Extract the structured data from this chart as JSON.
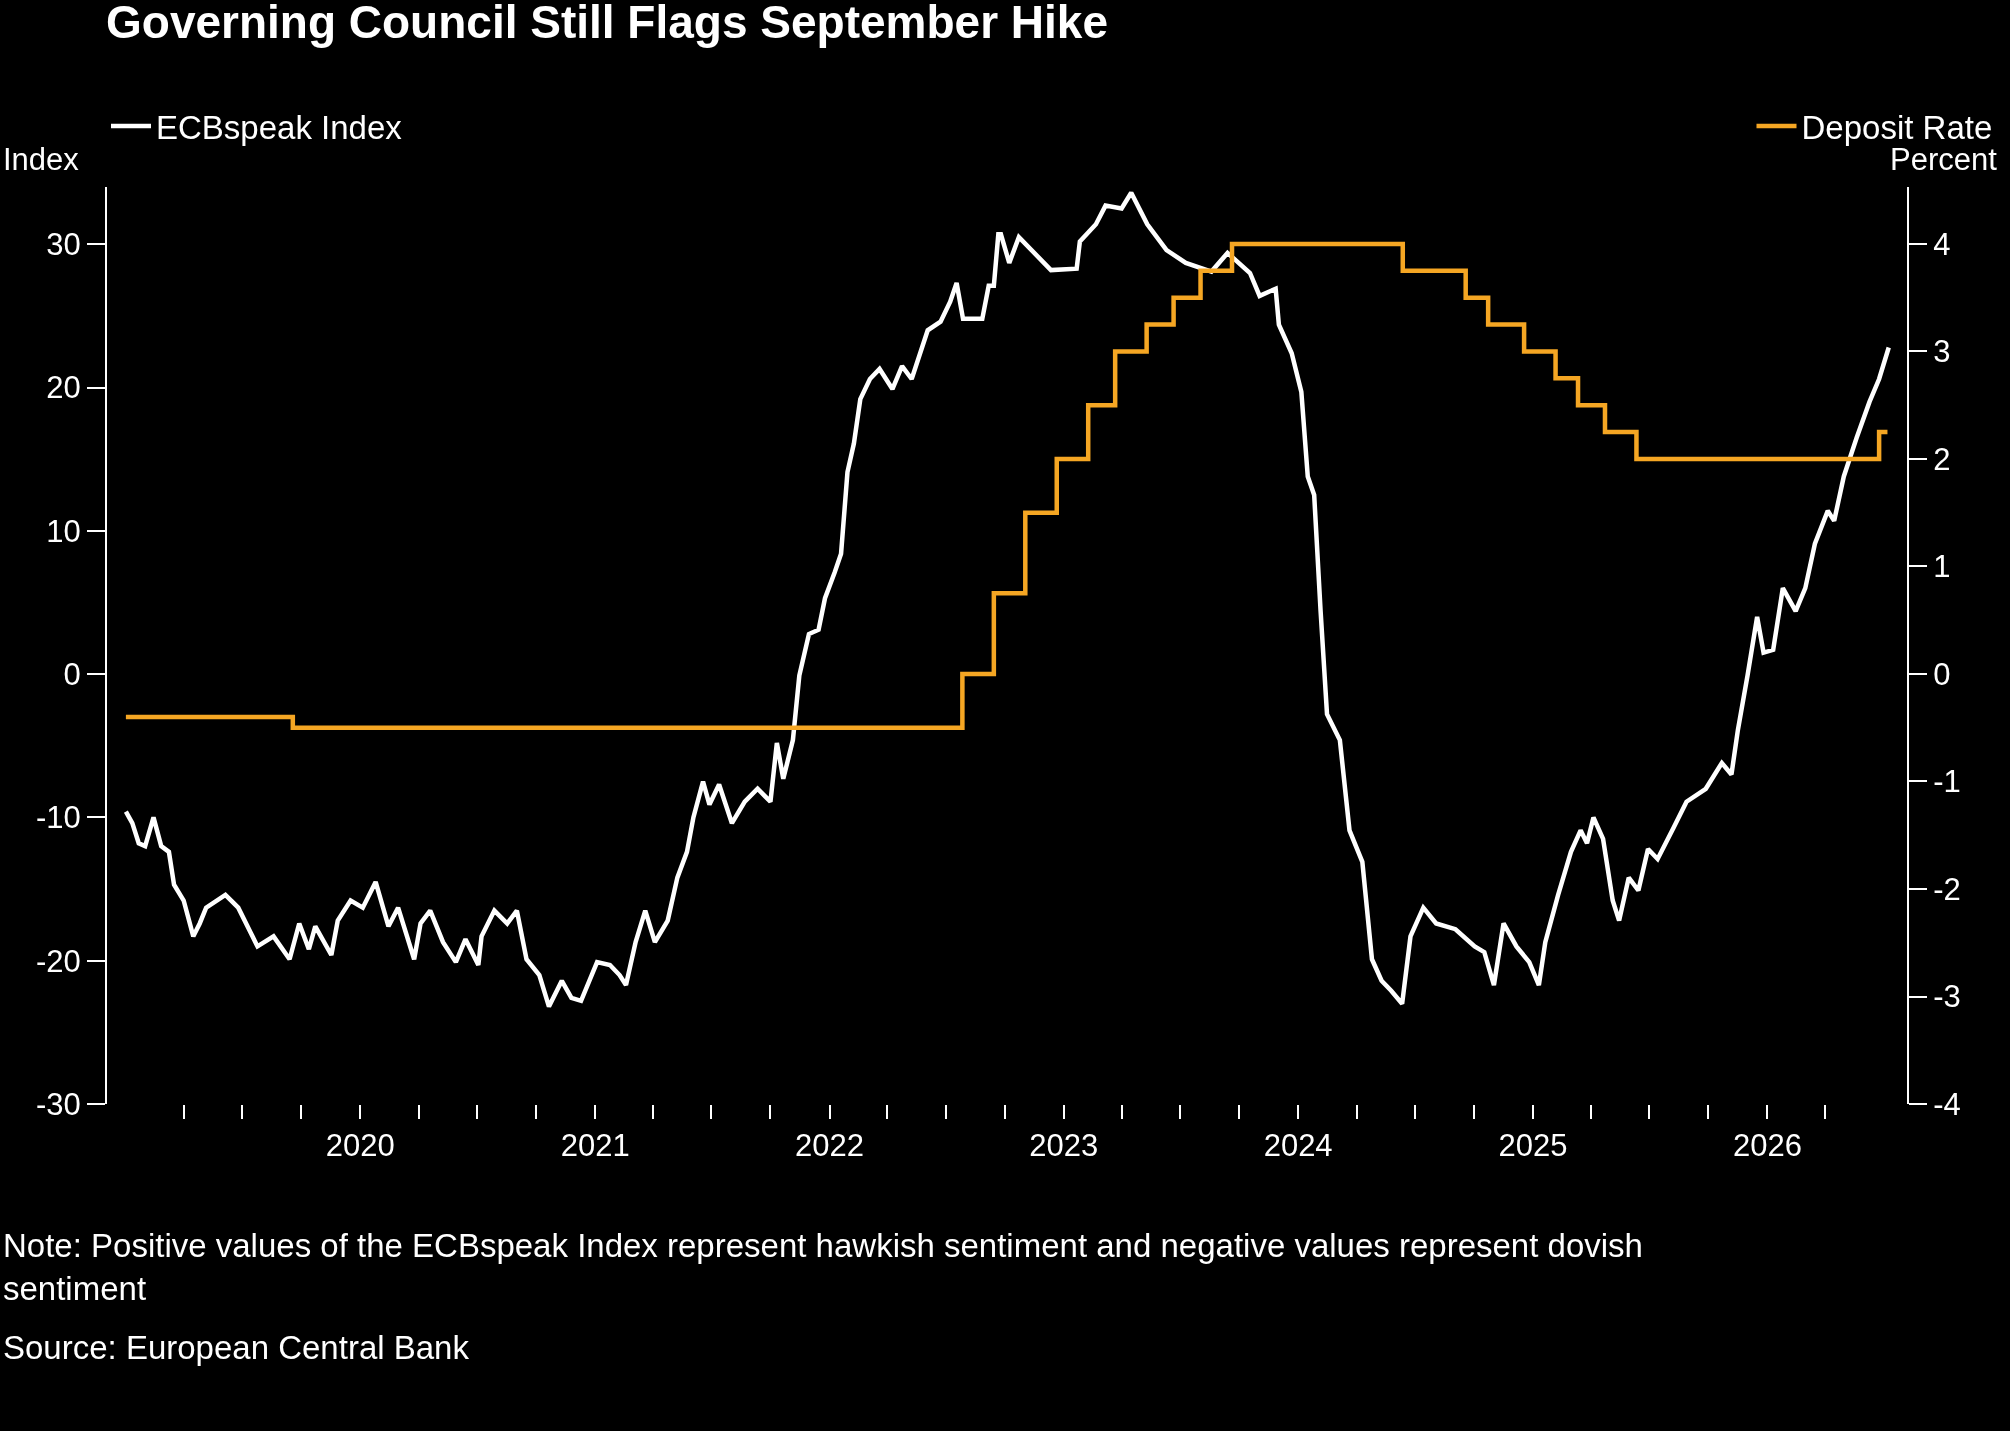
{
  "chart_data": {
    "type": "line",
    "title": "Governing Council Still Flags September Hike",
    "ylabel": "Index",
    "y2label": "Percent",
    "xlim": [
      "2018-12-01",
      "2026-08-08"
    ],
    "xticks": [
      {
        "value": "2019-04-01",
        "label": null
      },
      {
        "value": "2019-07-01",
        "label": null
      },
      {
        "value": "2019-10-01",
        "label": null
      },
      {
        "value": "2020-01-01",
        "label": "2020"
      },
      {
        "value": "2020-04-01",
        "label": null
      },
      {
        "value": "2020-07-01",
        "label": null
      },
      {
        "value": "2020-10-01",
        "label": null
      },
      {
        "value": "2021-01-01",
        "label": "2021"
      },
      {
        "value": "2021-04-01",
        "label": null
      },
      {
        "value": "2021-07-01",
        "label": null
      },
      {
        "value": "2021-10-01",
        "label": null
      },
      {
        "value": "2022-01-01",
        "label": "2022"
      },
      {
        "value": "2022-04-01",
        "label": null
      },
      {
        "value": "2022-07-01",
        "label": null
      },
      {
        "value": "2022-10-01",
        "label": null
      },
      {
        "value": "2023-01-01",
        "label": "2023"
      },
      {
        "value": "2023-04-01",
        "label": null
      },
      {
        "value": "2023-07-01",
        "label": null
      },
      {
        "value": "2023-10-01",
        "label": null
      },
      {
        "value": "2024-01-01",
        "label": "2024"
      },
      {
        "value": "2024-04-01",
        "label": null
      },
      {
        "value": "2024-07-01",
        "label": null
      },
      {
        "value": "2024-10-01",
        "label": null
      },
      {
        "value": "2025-01-01",
        "label": "2025"
      },
      {
        "value": "2025-04-01",
        "label": null
      },
      {
        "value": "2025-07-01",
        "label": null
      },
      {
        "value": "2025-10-01",
        "label": null
      },
      {
        "value": "2026-01-01",
        "label": "2026"
      },
      {
        "value": "2026-04-01",
        "label": null
      }
    ],
    "ylim": [
      -30,
      34
    ],
    "yticks": [
      -30,
      -20,
      -10,
      0,
      10,
      20,
      30
    ],
    "y2lim": [
      -4,
      4.53
    ],
    "y2ticks": [
      -4,
      -3,
      -2,
      -1,
      0,
      1,
      2,
      3,
      4
    ],
    "grid": false,
    "legend": "top",
    "series": [
      {
        "name": "ECBspeak Index",
        "color": "#ffffff",
        "x": [
          "2019-01-01",
          "2019-01-11",
          "2019-01-21",
          "2019-01-31",
          "2019-02-13",
          "2019-02-25",
          "2019-03-09",
          "2019-03-17",
          "2019-04-01",
          "2019-04-16",
          "2019-04-26",
          "2019-05-06",
          "2019-06-05",
          "2019-06-25",
          "2019-07-15",
          "2019-07-25",
          "2019-08-19",
          "2019-09-13",
          "2019-09-28",
          "2019-10-13",
          "2019-10-23",
          "2019-11-17",
          "2019-11-27",
          "2019-12-17",
          "2020-01-05",
          "2020-01-25",
          "2020-02-14",
          "2020-02-29",
          "2020-03-25",
          "2020-04-04",
          "2020-04-19",
          "2020-05-09",
          "2020-05-29",
          "2020-06-13",
          "2020-07-03",
          "2020-07-08",
          "2020-07-28",
          "2020-08-17",
          "2020-09-01",
          "2020-09-16",
          "2020-10-06",
          "2020-10-21",
          "2020-11-10",
          "2020-11-25",
          "2020-12-10",
          "2021-01-04",
          "2021-01-24",
          "2021-02-08",
          "2021-02-18",
          "2021-03-05",
          "2021-03-20",
          "2021-04-04",
          "2021-04-24",
          "2021-05-09",
          "2021-05-24",
          "2021-06-03",
          "2021-06-18",
          "2021-06-28",
          "2021-07-13",
          "2021-08-02",
          "2021-08-22",
          "2021-09-11",
          "2021-10-01",
          "2021-10-11",
          "2021-10-21",
          "2021-11-05",
          "2021-11-15",
          "2021-11-30",
          "2021-12-15",
          "2021-12-25",
          "2022-01-09",
          "2022-01-19",
          "2022-01-29",
          "2022-02-08",
          "2022-02-18",
          "2022-03-05",
          "2022-03-20",
          "2022-04-09",
          "2022-04-24",
          "2022-05-09",
          "2022-06-03",
          "2022-06-23",
          "2022-07-08",
          "2022-07-18",
          "2022-07-28",
          "2022-08-27",
          "2022-09-06",
          "2022-09-14",
          "2022-09-21",
          "2022-09-25",
          "2022-10-08",
          "2022-10-23",
          "2022-12-12",
          "2023-01-21",
          "2023-01-26",
          "2023-02-20",
          "2023-03-07",
          "2023-04-01",
          "2023-04-16",
          "2023-05-11",
          "2023-06-10",
          "2023-07-10",
          "2023-08-19",
          "2023-09-13",
          "2023-10-18",
          "2023-11-02",
          "2023-11-27",
          "2023-12-02",
          "2023-12-22",
          "2024-01-06",
          "2024-01-16",
          "2024-01-26",
          "2024-02-05",
          "2024-02-15",
          "2024-03-06",
          "2024-03-21",
          "2024-04-10",
          "2024-04-25",
          "2024-05-10",
          "2024-05-25",
          "2024-06-11",
          "2024-06-24",
          "2024-07-14",
          "2024-08-03",
          "2024-09-02",
          "2024-10-02",
          "2024-10-17",
          "2024-11-01",
          "2024-11-16",
          "2024-12-06",
          "2024-12-26",
          "2025-01-10",
          "2025-01-20",
          "2025-02-09",
          "2025-03-01",
          "2025-03-16",
          "2025-03-26",
          "2025-04-05",
          "2025-04-20",
          "2025-05-05",
          "2025-05-15",
          "2025-05-30",
          "2025-06-14",
          "2025-06-29",
          "2025-07-14",
          "2025-08-08",
          "2025-08-28",
          "2025-09-27",
          "2025-10-22",
          "2025-11-06",
          "2025-11-16",
          "2025-12-01",
          "2025-12-16",
          "2025-12-26",
          "2026-01-10",
          "2026-01-25",
          "2026-02-14",
          "2026-03-01",
          "2026-03-16",
          "2026-04-05",
          "2026-04-15",
          "2026-04-30",
          "2026-05-20",
          "2026-06-09",
          "2026-06-24",
          "2026-07-09"
        ],
        "values": [
          -9.6,
          -10.4,
          -11.8,
          -12,
          -10,
          -12,
          -12.4,
          -14.7,
          -15.8,
          -18.3,
          -17.4,
          -16.3,
          -15.4,
          -16.3,
          -18.1,
          -19,
          -18.3,
          -19.9,
          -17.4,
          -19.2,
          -17.6,
          -19.6,
          -17.2,
          -15.8,
          -16.3,
          -14.5,
          -17.6,
          -16.3,
          -19.9,
          -17.4,
          -16.5,
          -18.7,
          -20.1,
          -18.5,
          -20.3,
          -18.3,
          -16.5,
          -17.4,
          -16.5,
          -19.9,
          -21,
          -23.2,
          -21.4,
          -22.6,
          -22.8,
          -20.1,
          -20.3,
          -21,
          -21.7,
          -18.7,
          -16.5,
          -18.7,
          -17.2,
          -14.2,
          -12.4,
          -10,
          -7.5,
          -9.1,
          -7.7,
          -10.4,
          -8.9,
          -8,
          -8.9,
          -4.8,
          -7.3,
          -4.6,
          -0.1,
          2.8,
          3.1,
          5.3,
          7.1,
          8.4,
          14.1,
          16.1,
          19.2,
          20.6,
          21.3,
          19.9,
          21.5,
          20.6,
          24,
          24.6,
          26,
          27.3,
          24.8,
          24.8,
          27.1,
          27.1,
          30.7,
          30.7,
          28.7,
          30.5,
          28.2,
          28.3,
          30.2,
          31.4,
          32.7,
          32.5,
          33.6,
          31.4,
          29.6,
          28.7,
          28.1,
          29.4,
          28,
          26.4,
          26.9,
          24.4,
          22.4,
          19.7,
          13.8,
          12.5,
          4.4,
          -2.8,
          -4.6,
          -10.9,
          -13.1,
          -19.9,
          -21.4,
          -22.1,
          -23,
          -18.3,
          -16.3,
          -17.4,
          -17.8,
          -19,
          -19.4,
          -21.7,
          -17.4,
          -19,
          -20.1,
          -21.7,
          -18.7,
          -15.4,
          -12.4,
          -10.9,
          -11.8,
          -10,
          -11.5,
          -15.8,
          -17.2,
          -14.2,
          -15.1,
          -12.2,
          -12.9,
          -10.7,
          -8.9,
          -8,
          -6.2,
          -7,
          -3.9,
          -0.1,
          4,
          1.5,
          1.7,
          6,
          4.4,
          6,
          9.1,
          11.4,
          10.7,
          13.8,
          16.5,
          19,
          20.6,
          22.8
        ]
      },
      {
        "name": "Deposit Rate",
        "color": "#f5a623",
        "type": "step",
        "axis": "y2",
        "x": [
          "2019-01-01",
          "2019-09-18",
          "2022-07-27",
          "2022-09-14",
          "2022-11-02",
          "2022-12-21",
          "2023-02-08",
          "2023-03-22",
          "2023-05-10",
          "2023-06-21",
          "2023-08-02",
          "2023-09-20",
          "2024-06-12",
          "2024-09-18",
          "2024-10-23",
          "2024-12-18",
          "2025-02-05",
          "2025-03-12",
          "2025-04-23",
          "2025-06-11",
          "2026-06-24",
          "2026-07-07"
        ],
        "values": [
          -0.4,
          -0.5,
          0,
          0.75,
          1.5,
          2,
          2.5,
          3,
          3.25,
          3.5,
          3.75,
          4,
          3.75,
          3.5,
          3.25,
          3,
          2.75,
          2.5,
          2.25,
          2,
          2.25,
          2.25
        ]
      }
    ],
    "annotations": [
      "Note: Positive values of the ECBspeak Index represent hawkish sentiment and negative values represent dovish sentiment",
      "Source: European Central Bank"
    ]
  }
}
